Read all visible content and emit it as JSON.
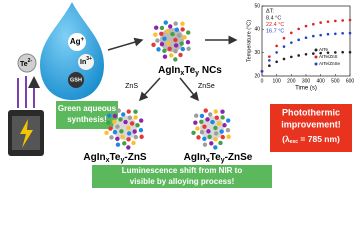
{
  "ions": {
    "ag": [
      "Ag",
      "+"
    ],
    "in": [
      "In",
      "3+"
    ],
    "gsh": "GSH",
    "te": [
      "Te",
      "2-"
    ]
  },
  "green_synthesis": [
    "Green aqueous",
    "synthesis!"
  ],
  "nc_label": [
    "AgIn",
    "x",
    "Te",
    "y",
    " NCs"
  ],
  "arrow_zns": "ZnS",
  "arrow_znse": "ZnSe",
  "zns_label": [
    "AgIn",
    "x",
    "Te",
    "y",
    "-ZnS"
  ],
  "znse_label": [
    "AgIn",
    "x",
    "Te",
    "y",
    "-ZnSe"
  ],
  "luminescence": [
    "Luminescence shift from NIR to",
    "visible by alloying process!"
  ],
  "photothermic": [
    "Photothermic",
    "improvement!",
    "(λ",
    "exc",
    " = 785 nm)"
  ],
  "inset_chart": {
    "type": "scatter",
    "x_label": "Time (s)",
    "y_label": "Temperature (°C)",
    "legend_title": "ΔT:",
    "delta_labels": [
      "8.4 °C",
      "22.4 °C",
      "16.7 °C"
    ],
    "x": [
      0,
      50,
      100,
      150,
      200,
      250,
      300,
      350,
      400,
      450,
      500,
      550,
      600
    ],
    "xlim": [
      0,
      600
    ],
    "xticks": [
      0,
      100,
      200,
      300,
      400,
      500,
      600
    ],
    "ylim": [
      20,
      50
    ],
    "yticks": [
      20,
      30,
      40,
      50
    ],
    "series": [
      {
        "name": "AITe",
        "color": "#222222",
        "values": [
          22,
          24.4,
          26.1,
          27.3,
          28.2,
          28.8,
          29.3,
          29.6,
          29.8,
          30.0,
          30.1,
          30.2,
          30.2
        ]
      },
      {
        "name": "AITe/ZnS",
        "color": "#e02020",
        "values": [
          22,
          28.3,
          32.9,
          36.2,
          38.5,
          40.2,
          41.4,
          42.2,
          42.9,
          43.3,
          43.6,
          43.8,
          44.0
        ]
      },
      {
        "name": "AITe/ZnSe",
        "color": "#2040d0",
        "values": [
          22,
          26.7,
          30.1,
          32.6,
          34.3,
          35.5,
          36.4,
          37.1,
          37.5,
          37.9,
          38.1,
          38.3,
          38.4
        ]
      }
    ]
  }
}
